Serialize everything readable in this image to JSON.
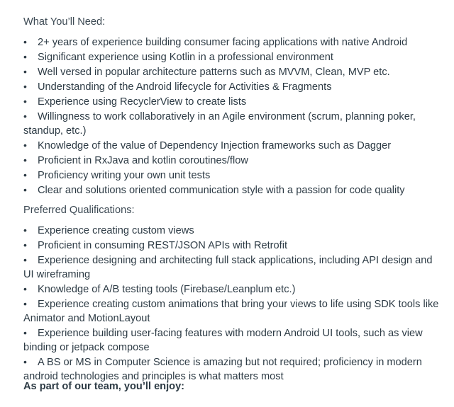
{
  "bullet_glyph": "•",
  "needs": {
    "heading": "What You’ll Need:",
    "items": [
      "2+ years of experience building consumer facing applications with native Android",
      "Significant experience using Kotlin in a professional environment",
      "Well versed in popular architecture patterns such as MVVM, Clean, MVP etc.",
      "Understanding of the Android lifecycle for Activities & Fragments",
      "Experience using RecyclerView to create lists",
      "Willingness to work collaboratively in an Agile environment (scrum, planning poker, standup, etc.)",
      "Knowledge of the value of Dependency Injection frameworks such as Dagger",
      "Proficient in RxJava and kotlin coroutines/flow",
      "Proficiency writing your own unit tests",
      "Clear and solutions oriented communication style with a passion for code quality"
    ]
  },
  "preferred": {
    "heading": "Preferred Qualifications:",
    "items": [
      "Experience creating custom views",
      "Proficient in consuming REST/JSON APIs with Retrofit",
      "Experience designing and architecting full stack applications, including API design and UI wireframing",
      "Knowledge of A/B testing tools (Firebase/Leanplum etc.)",
      "Experience creating custom animations that bring your views to life using SDK tools like Animator and MotionLayout",
      "Experience building user-facing features with modern Android UI tools, such as view binding or jetpack compose",
      "A BS or MS in Computer Science is amazing but not required; proficiency in modern android technologies and principles is what matters most"
    ]
  },
  "closing": "As part of our team, you’ll enjoy:"
}
